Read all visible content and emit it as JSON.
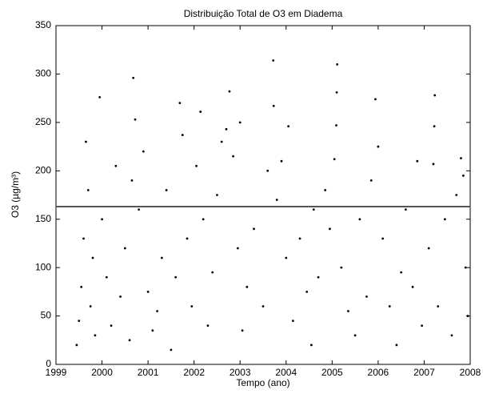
{
  "chart_data": {
    "type": "scatter",
    "title": "Distribuição Total de O3 em Diadema",
    "xlabel": "Tempo (ano)",
    "ylabel": "O3 (µg/m³)",
    "xlim": [
      1999,
      2008
    ],
    "xticks": [
      1999,
      2000,
      2001,
      2002,
      2003,
      2004,
      2005,
      2006,
      2007,
      2008
    ],
    "ylim": [
      0,
      350
    ],
    "yticks": [
      0,
      50,
      100,
      150,
      200,
      250,
      300,
      350
    ],
    "color": "#000000",
    "hline": 163,
    "hline_color": "#555555",
    "x": [
      1999.45,
      1999.5,
      1999.55,
      1999.6,
      1999.65,
      1999.7,
      1999.75,
      1999.8,
      1999.85,
      1999.95,
      2000.0,
      2000.1,
      2000.2,
      2000.3,
      2000.4,
      2000.5,
      2000.6,
      2000.65,
      2000.68,
      2000.72,
      2000.8,
      2000.9,
      2001.0,
      2001.1,
      2001.2,
      2001.3,
      2001.4,
      2001.5,
      2001.6,
      2001.69,
      2001.75,
      2001.85,
      2001.95,
      2002.05,
      2002.14,
      2002.2,
      2002.3,
      2002.4,
      2002.5,
      2002.6,
      2002.7,
      2002.77,
      2002.85,
      2002.95,
      2003.0,
      2003.05,
      2003.15,
      2003.3,
      2003.5,
      2003.6,
      2003.72,
      2003.73,
      2003.8,
      2003.9,
      2004.0,
      2004.05,
      2004.15,
      2004.3,
      2004.45,
      2004.55,
      2004.6,
      2004.7,
      2004.85,
      2004.95,
      2005.05,
      2005.09,
      2005.1,
      2005.11,
      2005.2,
      2005.35,
      2005.5,
      2005.6,
      2005.75,
      2005.85,
      2005.94,
      2006.0,
      2006.1,
      2006.25,
      2006.4,
      2006.5,
      2006.6,
      2006.75,
      2006.85,
      2006.95,
      2007.1,
      2007.2,
      2007.22,
      2007.23,
      2007.3,
      2007.45,
      2007.6,
      2007.7,
      2007.8,
      2007.85,
      2007.9,
      2007.95
    ],
    "y": [
      20,
      45,
      80,
      130,
      230,
      180,
      60,
      110,
      30,
      276,
      150,
      90,
      40,
      205,
      70,
      120,
      25,
      190,
      296,
      253,
      160,
      220,
      75,
      35,
      55,
      110,
      180,
      15,
      90,
      270,
      237,
      130,
      60,
      205,
      261,
      150,
      40,
      95,
      175,
      230,
      243,
      282,
      215,
      120,
      250,
      35,
      80,
      140,
      60,
      200,
      314,
      267,
      170,
      210,
      110,
      246,
      45,
      130,
      75,
      20,
      160,
      90,
      180,
      140,
      212,
      247,
      281,
      310,
      100,
      55,
      30,
      150,
      70,
      190,
      274,
      225,
      130,
      60,
      20,
      95,
      160,
      80,
      210,
      40,
      120,
      207,
      246,
      278,
      60,
      150,
      30,
      175,
      213,
      195,
      100,
      50
    ]
  }
}
